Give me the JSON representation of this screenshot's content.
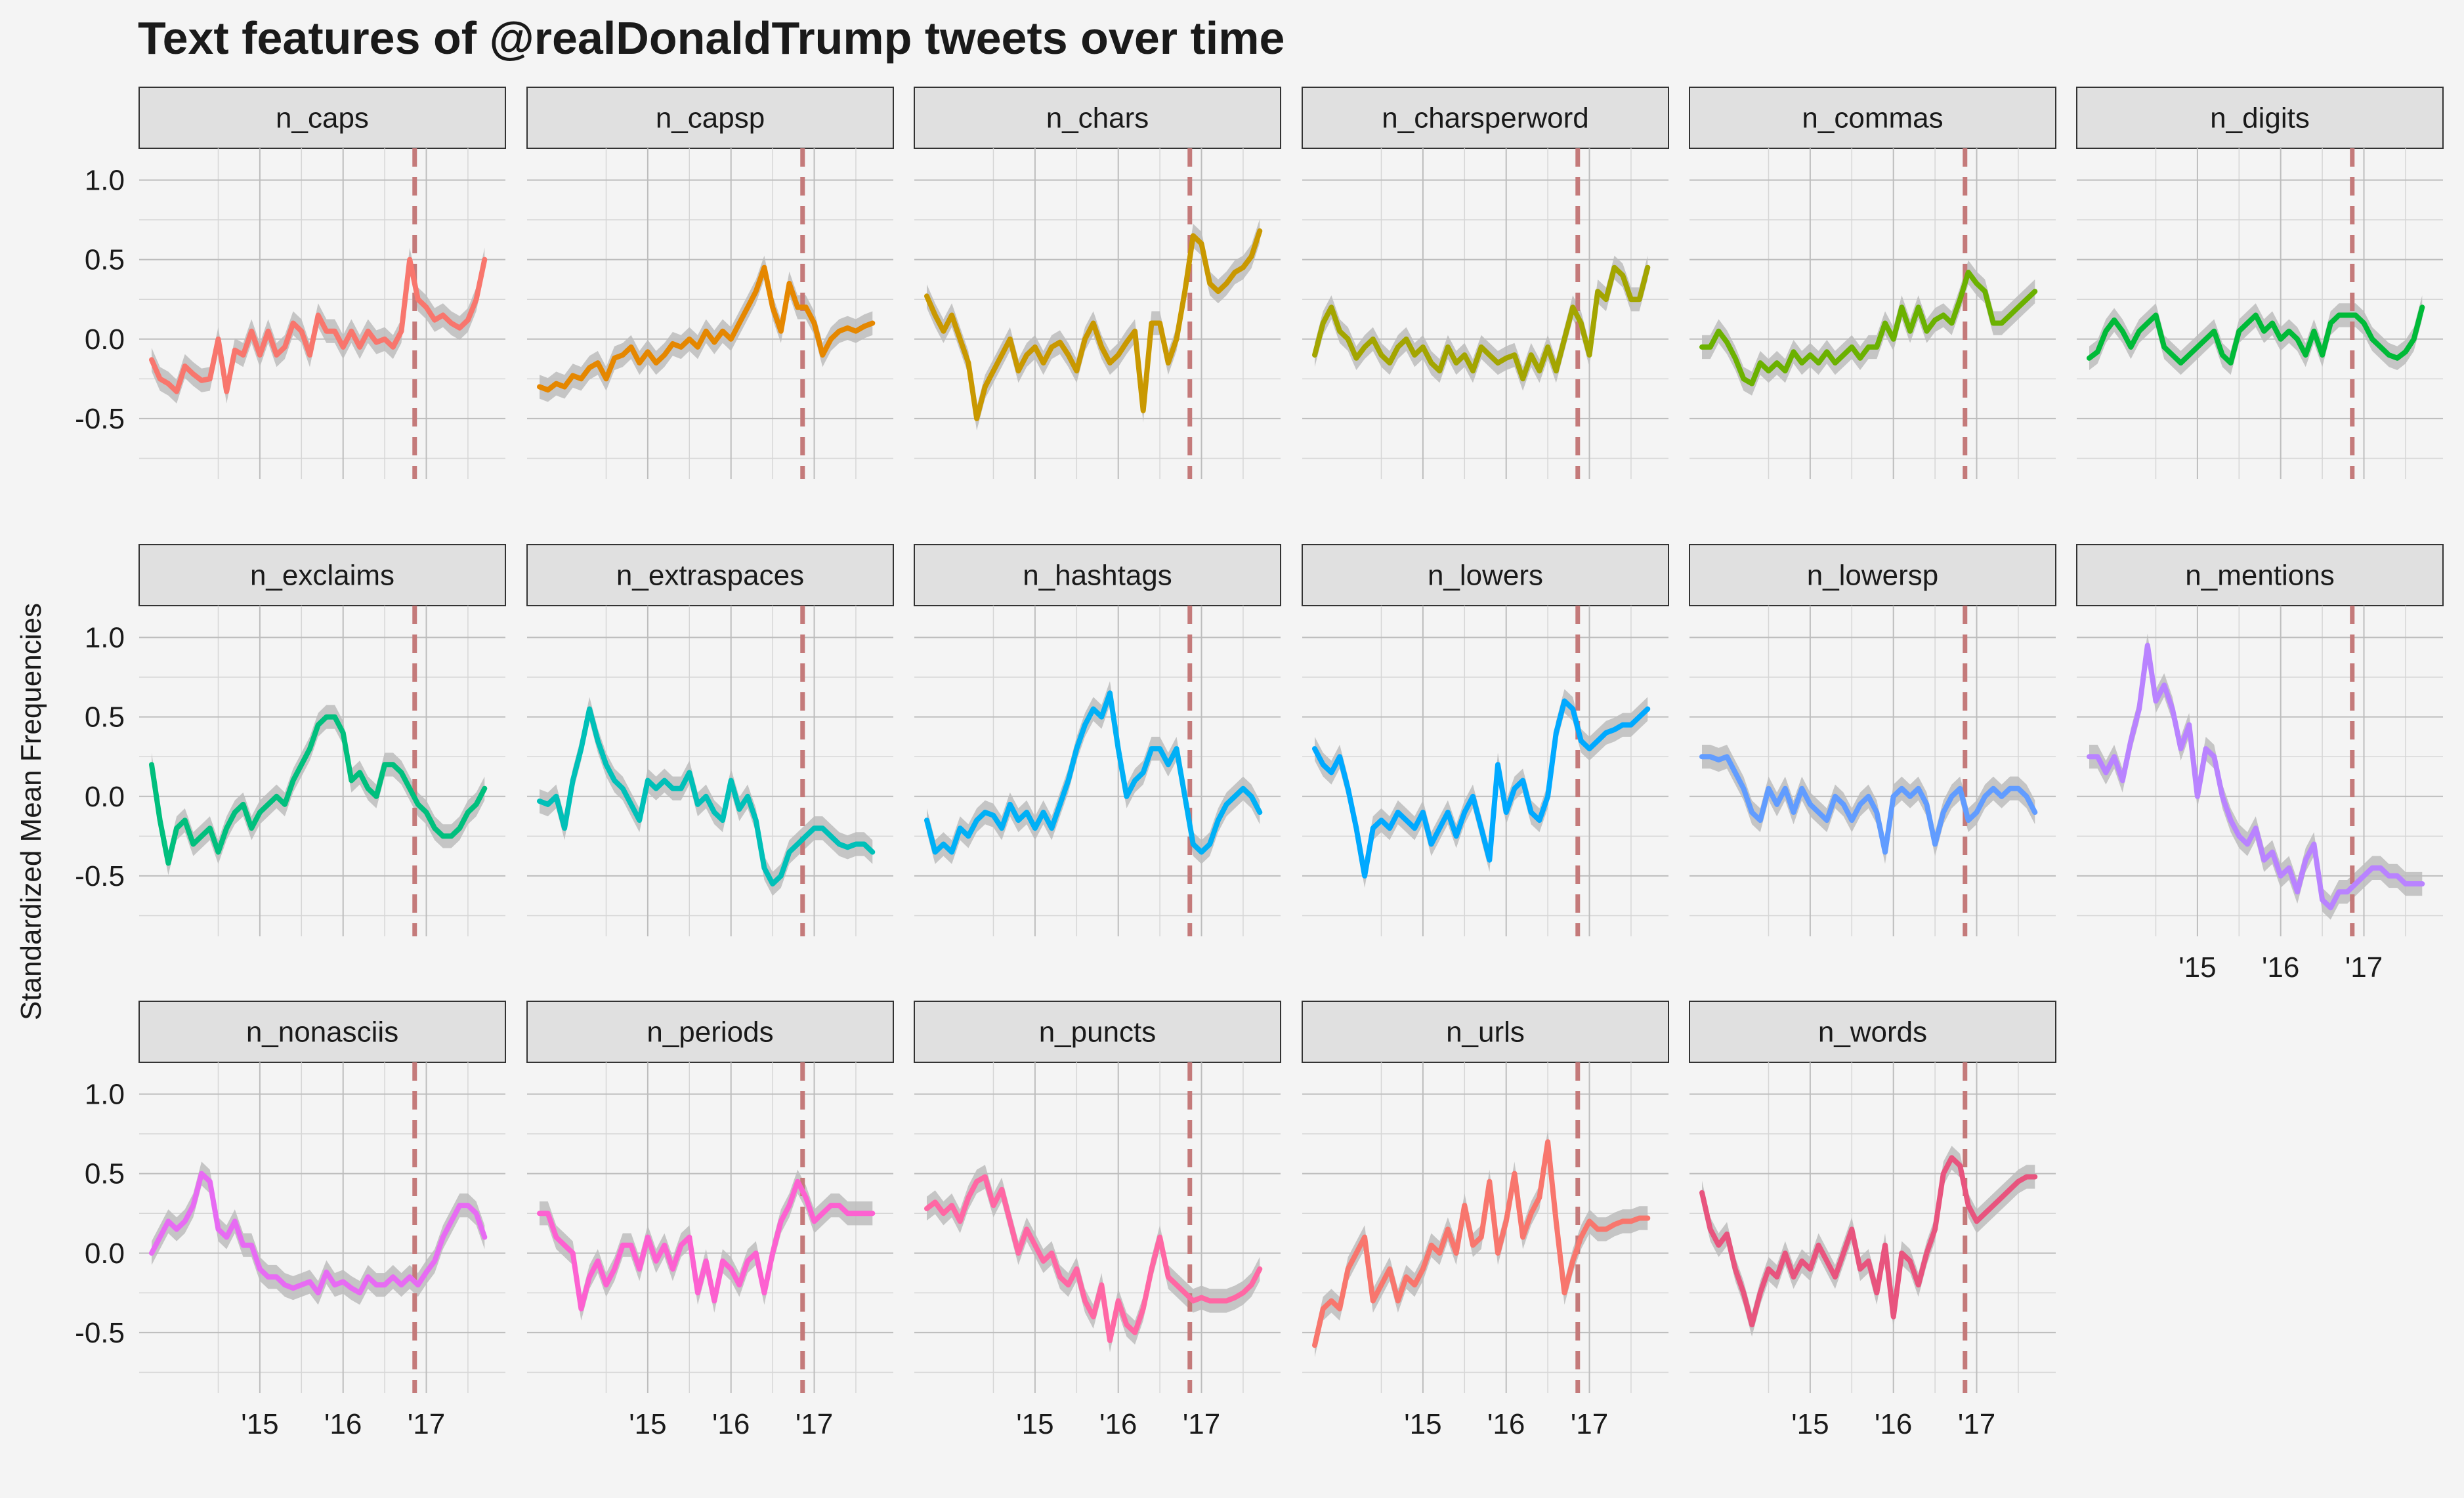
{
  "chart_data": {
    "type": "line",
    "title": "Text features of @realDonaldTrump tweets over time",
    "xlabel": "",
    "ylabel": "Standardized Mean Frequencies",
    "x_tick_labels": [
      "'15",
      "'16",
      "'17"
    ],
    "x_ticks": [
      2015.0,
      2016.0,
      2017.0
    ],
    "xlim": [
      2013.55,
      2017.95
    ],
    "ylim": [
      -0.88,
      1.2
    ],
    "y_ticks": [
      1.0,
      0.5,
      0.0,
      -0.5
    ],
    "y_tick_labels": [
      "1.0",
      "0.5",
      "0.0",
      "-0.5"
    ],
    "reference_line_x": 2016.86,
    "band_half_width": 0.075,
    "grid": true,
    "x": [
      2013.7,
      2013.8,
      2013.9,
      2014.0,
      2014.1,
      2014.2,
      2014.3,
      2014.4,
      2014.5,
      2014.6,
      2014.7,
      2014.8,
      2014.9,
      2015.0,
      2015.1,
      2015.2,
      2015.3,
      2015.4,
      2015.5,
      2015.6,
      2015.7,
      2015.8,
      2015.9,
      2016.0,
      2016.1,
      2016.2,
      2016.3,
      2016.4,
      2016.5,
      2016.6,
      2016.7,
      2016.8,
      2016.9,
      2017.0,
      2017.1,
      2017.2,
      2017.3,
      2017.4,
      2017.5,
      2017.6,
      2017.7
    ],
    "series": [
      {
        "name": "n_caps",
        "color": "#F8766D",
        "values": [
          -0.13,
          -0.25,
          -0.28,
          -0.33,
          -0.17,
          -0.22,
          -0.26,
          -0.25,
          0.0,
          -0.33,
          -0.07,
          -0.1,
          0.05,
          -0.1,
          0.05,
          -0.1,
          -0.05,
          0.1,
          0.05,
          -0.1,
          0.15,
          0.05,
          0.05,
          -0.05,
          0.05,
          -0.05,
          0.05,
          -0.02,
          0.0,
          -0.05,
          0.05,
          0.5,
          0.25,
          0.2,
          0.12,
          0.15,
          0.1,
          0.07,
          0.12,
          0.25,
          0.5
        ]
      },
      {
        "name": "n_capsp",
        "color": "#E58700",
        "values": [
          -0.3,
          -0.32,
          -0.28,
          -0.3,
          -0.23,
          -0.25,
          -0.18,
          -0.15,
          -0.25,
          -0.12,
          -0.1,
          -0.05,
          -0.15,
          -0.08,
          -0.15,
          -0.1,
          -0.03,
          -0.05,
          0.0,
          -0.05,
          0.05,
          -0.02,
          0.05,
          0.0,
          0.1,
          0.2,
          0.3,
          0.45,
          0.2,
          0.05,
          0.35,
          0.2,
          0.2,
          0.1,
          -0.1,
          0.0,
          0.05,
          0.07,
          0.05,
          0.08,
          0.1
        ]
      },
      {
        "name": "n_chars",
        "color": "#C99800",
        "values": [
          0.27,
          0.15,
          0.05,
          0.15,
          0.0,
          -0.15,
          -0.5,
          -0.3,
          -0.2,
          -0.1,
          0.0,
          -0.2,
          -0.1,
          -0.05,
          -0.15,
          -0.05,
          -0.02,
          -0.1,
          -0.2,
          0.0,
          0.1,
          -0.05,
          -0.15,
          -0.1,
          -0.02,
          0.05,
          -0.45,
          0.1,
          0.1,
          -0.15,
          0.0,
          0.3,
          0.65,
          0.6,
          0.35,
          0.3,
          0.35,
          0.42,
          0.45,
          0.52,
          0.68
        ]
      },
      {
        "name": "n_charsperword",
        "color": "#A3A500",
        "values": [
          -0.1,
          0.1,
          0.2,
          0.05,
          0.0,
          -0.12,
          -0.05,
          0.0,
          -0.1,
          -0.15,
          -0.05,
          0.0,
          -0.1,
          -0.05,
          -0.15,
          -0.2,
          -0.05,
          -0.15,
          -0.1,
          -0.2,
          -0.05,
          -0.1,
          -0.15,
          -0.12,
          -0.1,
          -0.25,
          -0.1,
          -0.2,
          -0.05,
          -0.2,
          0.0,
          0.2,
          0.1,
          -0.1,
          0.3,
          0.25,
          0.45,
          0.4,
          0.25,
          0.25,
          0.45
        ]
      },
      {
        "name": "n_commas",
        "color": "#6BB100",
        "values": [
          -0.05,
          -0.05,
          0.05,
          -0.02,
          -0.12,
          -0.25,
          -0.28,
          -0.15,
          -0.2,
          -0.15,
          -0.2,
          -0.08,
          -0.15,
          -0.1,
          -0.15,
          -0.08,
          -0.15,
          -0.1,
          -0.05,
          -0.12,
          -0.05,
          -0.05,
          0.1,
          0.0,
          0.2,
          0.05,
          0.2,
          0.05,
          0.12,
          0.15,
          0.1,
          0.25,
          0.42,
          0.35,
          0.3,
          0.1,
          0.1,
          0.15,
          0.2,
          0.25,
          0.3
        ]
      },
      {
        "name": "n_digits",
        "color": "#00BA38",
        "values": [
          -0.12,
          -0.08,
          0.05,
          0.12,
          0.05,
          -0.05,
          0.05,
          0.1,
          0.15,
          -0.05,
          -0.1,
          -0.15,
          -0.1,
          -0.05,
          0.0,
          0.05,
          -0.1,
          -0.15,
          0.05,
          0.1,
          0.15,
          0.05,
          0.1,
          0.0,
          0.05,
          0.0,
          -0.1,
          0.05,
          -0.1,
          0.1,
          0.15,
          0.15,
          0.15,
          0.1,
          0.0,
          -0.05,
          -0.1,
          -0.12,
          -0.08,
          0.0,
          0.2
        ]
      },
      {
        "name": "n_exclaims",
        "color": "#00BF7D",
        "values": [
          0.2,
          -0.15,
          -0.42,
          -0.2,
          -0.15,
          -0.3,
          -0.25,
          -0.2,
          -0.35,
          -0.2,
          -0.1,
          -0.05,
          -0.2,
          -0.1,
          -0.05,
          0.0,
          -0.05,
          0.1,
          0.2,
          0.3,
          0.45,
          0.5,
          0.5,
          0.4,
          0.1,
          0.15,
          0.05,
          0.0,
          0.2,
          0.2,
          0.15,
          0.05,
          -0.05,
          -0.1,
          -0.2,
          -0.25,
          -0.25,
          -0.2,
          -0.1,
          -0.05,
          0.05
        ]
      },
      {
        "name": "n_extraspaces",
        "color": "#00C0B8",
        "values": [
          -0.03,
          -0.05,
          0.0,
          -0.2,
          0.1,
          0.3,
          0.55,
          0.35,
          0.2,
          0.1,
          0.05,
          -0.05,
          -0.15,
          0.1,
          0.05,
          0.1,
          0.05,
          0.05,
          0.15,
          -0.05,
          0.0,
          -0.1,
          -0.15,
          0.1,
          -0.08,
          0.0,
          -0.15,
          -0.45,
          -0.55,
          -0.5,
          -0.35,
          -0.3,
          -0.25,
          -0.2,
          -0.2,
          -0.25,
          -0.3,
          -0.32,
          -0.3,
          -0.3,
          -0.35
        ]
      },
      {
        "name": "n_hashtags",
        "color": "#00B0F6",
        "values": [
          -0.15,
          -0.35,
          -0.3,
          -0.35,
          -0.2,
          -0.25,
          -0.15,
          -0.1,
          -0.12,
          -0.2,
          -0.05,
          -0.15,
          -0.1,
          -0.2,
          -0.1,
          -0.2,
          -0.05,
          0.1,
          0.3,
          0.45,
          0.55,
          0.5,
          0.65,
          0.3,
          0.0,
          0.1,
          0.15,
          0.3,
          0.3,
          0.2,
          0.3,
          0.0,
          -0.3,
          -0.35,
          -0.3,
          -0.15,
          -0.05,
          0.0,
          0.05,
          0.0,
          -0.1
        ]
      },
      {
        "name": "n_lowers",
        "color": "#00A9FF",
        "values": [
          0.3,
          0.2,
          0.15,
          0.25,
          0.05,
          -0.2,
          -0.5,
          -0.2,
          -0.15,
          -0.2,
          -0.1,
          -0.15,
          -0.2,
          -0.1,
          -0.3,
          -0.2,
          -0.1,
          -0.25,
          -0.1,
          0.0,
          -0.2,
          -0.4,
          0.2,
          -0.1,
          0.05,
          0.1,
          -0.1,
          -0.15,
          0.0,
          0.4,
          0.6,
          0.55,
          0.35,
          0.3,
          0.35,
          0.4,
          0.42,
          0.45,
          0.45,
          0.5,
          0.55
        ]
      },
      {
        "name": "n_lowersp",
        "color": "#619CFF",
        "values": [
          0.25,
          0.25,
          0.23,
          0.25,
          0.15,
          0.05,
          -0.1,
          -0.15,
          0.05,
          -0.05,
          0.05,
          -0.1,
          0.05,
          -0.05,
          -0.1,
          -0.15,
          0.0,
          -0.05,
          -0.15,
          -0.05,
          0.0,
          -0.1,
          -0.35,
          0.0,
          0.05,
          0.0,
          0.05,
          -0.05,
          -0.3,
          -0.1,
          0.0,
          0.05,
          -0.15,
          -0.1,
          0.0,
          0.05,
          0.0,
          0.05,
          0.05,
          0.0,
          -0.1
        ]
      },
      {
        "name": "n_mentions",
        "color": "#B983FF",
        "values": [
          0.25,
          0.25,
          0.15,
          0.25,
          0.1,
          0.35,
          0.55,
          0.95,
          0.6,
          0.7,
          0.55,
          0.3,
          0.45,
          0.0,
          0.3,
          0.25,
          0.0,
          -0.15,
          -0.25,
          -0.3,
          -0.2,
          -0.4,
          -0.35,
          -0.5,
          -0.45,
          -0.6,
          -0.4,
          -0.3,
          -0.65,
          -0.7,
          -0.6,
          -0.6,
          -0.55,
          -0.5,
          -0.45,
          -0.45,
          -0.5,
          -0.5,
          -0.55,
          -0.55,
          -0.55
        ]
      },
      {
        "name": "n_nonasciis",
        "color": "#E76BF3",
        "values": [
          0.0,
          0.1,
          0.2,
          0.15,
          0.2,
          0.3,
          0.5,
          0.45,
          0.15,
          0.1,
          0.2,
          0.05,
          0.05,
          -0.1,
          -0.15,
          -0.15,
          -0.2,
          -0.22,
          -0.2,
          -0.18,
          -0.25,
          -0.12,
          -0.2,
          -0.18,
          -0.22,
          -0.25,
          -0.15,
          -0.2,
          -0.2,
          -0.15,
          -0.2,
          -0.15,
          -0.2,
          -0.12,
          -0.05,
          0.1,
          0.2,
          0.3,
          0.3,
          0.25,
          0.1
        ]
      },
      {
        "name": "n_periods",
        "color": "#FD61D1",
        "values": [
          0.25,
          0.25,
          0.1,
          0.05,
          0.0,
          -0.35,
          -0.15,
          -0.05,
          -0.2,
          -0.1,
          0.05,
          0.05,
          -0.1,
          0.1,
          -0.05,
          0.05,
          -0.1,
          0.05,
          0.1,
          -0.25,
          -0.05,
          -0.3,
          -0.05,
          -0.1,
          -0.2,
          -0.05,
          0.0,
          -0.25,
          0.0,
          0.2,
          0.3,
          0.45,
          0.35,
          0.2,
          0.25,
          0.3,
          0.3,
          0.25,
          0.25,
          0.25,
          0.25
        ]
      },
      {
        "name": "n_puncts",
        "color": "#FF67A4",
        "values": [
          0.28,
          0.32,
          0.25,
          0.3,
          0.2,
          0.35,
          0.45,
          0.48,
          0.3,
          0.4,
          0.2,
          0.0,
          0.15,
          0.05,
          -0.05,
          0.0,
          -0.15,
          -0.2,
          -0.1,
          -0.3,
          -0.4,
          -0.2,
          -0.55,
          -0.3,
          -0.45,
          -0.5,
          -0.35,
          -0.1,
          0.1,
          -0.15,
          -0.2,
          -0.25,
          -0.3,
          -0.28,
          -0.3,
          -0.3,
          -0.3,
          -0.28,
          -0.25,
          -0.2,
          -0.1
        ]
      },
      {
        "name": "n_urls",
        "color": "#F8766D",
        "values": [
          -0.58,
          -0.35,
          -0.3,
          -0.35,
          -0.1,
          0.0,
          0.1,
          -0.3,
          -0.2,
          -0.1,
          -0.3,
          -0.15,
          -0.2,
          -0.1,
          0.05,
          0.0,
          0.15,
          0.0,
          0.3,
          0.05,
          0.1,
          0.45,
          0.0,
          0.2,
          0.5,
          0.1,
          0.25,
          0.35,
          0.7,
          0.2,
          -0.25,
          -0.05,
          0.1,
          0.2,
          0.15,
          0.15,
          0.18,
          0.2,
          0.2,
          0.22,
          0.22
        ]
      },
      {
        "name": "n_words",
        "color": "#E8547E",
        "values": [
          0.38,
          0.15,
          0.05,
          0.12,
          -0.1,
          -0.25,
          -0.45,
          -0.25,
          -0.1,
          -0.15,
          0.0,
          -0.15,
          -0.05,
          -0.1,
          0.05,
          -0.05,
          -0.15,
          0.0,
          0.15,
          -0.1,
          -0.05,
          -0.25,
          0.05,
          -0.4,
          0.0,
          -0.05,
          -0.2,
          0.0,
          0.15,
          0.5,
          0.6,
          0.55,
          0.3,
          0.2,
          0.25,
          0.3,
          0.35,
          0.4,
          0.45,
          0.48,
          0.48
        ]
      }
    ]
  },
  "colors": {
    "background": "#f4f4f4",
    "grid_major": "#bdbdbd",
    "grid_minor": "#d6d6d6",
    "strip_fill": "#e0e0e0",
    "strip_border": "#333333",
    "band_fill": "#bcbcbc",
    "reference_line": "#c47a7a",
    "text": "#1a1a1a"
  }
}
